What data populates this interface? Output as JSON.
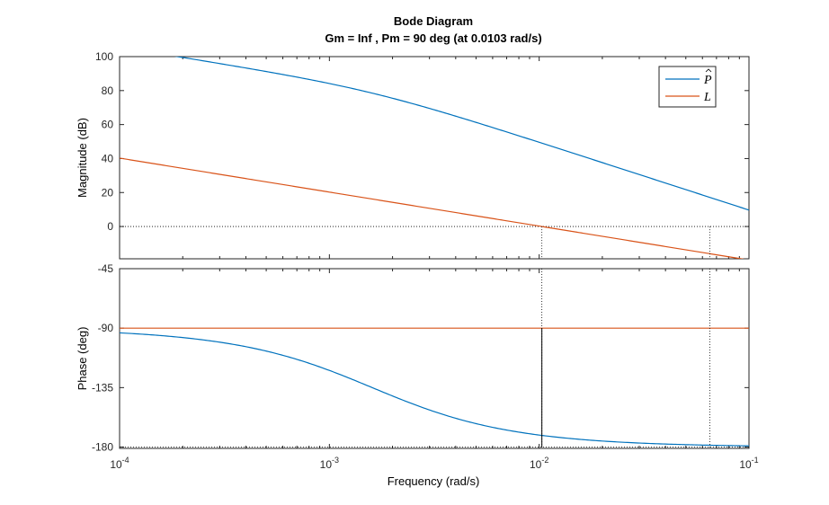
{
  "chart_data": {
    "type": "line",
    "title": "Bode Diagram",
    "subtitle": "Gm = Inf ,  Pm = 90 deg (at 0.0103 rad/s)",
    "xlabel": "Frequency  (rad/s)",
    "x_scale": "log",
    "xlim": [
      0.0001,
      0.1
    ],
    "x_ticks": [
      {
        "value": 0.0001,
        "base": "10",
        "exp": "-4"
      },
      {
        "value": 0.001,
        "base": "10",
        "exp": "-3"
      },
      {
        "value": 0.01,
        "base": "10",
        "exp": "-2"
      },
      {
        "value": 0.1,
        "base": "10",
        "exp": "-1"
      }
    ],
    "colors": {
      "P_hat": "#0072BD",
      "L": "#D95319",
      "marker": "#000000"
    },
    "legend": {
      "location": "top-right",
      "entries": [
        "P_hat",
        "L"
      ]
    },
    "panels": [
      {
        "id": "magnitude",
        "ylabel": "Magnitude (dB)",
        "ylim": [
          -19,
          100
        ],
        "yticks": [
          0,
          20,
          40,
          60,
          80,
          100
        ],
        "ytick_labels": [
          "0",
          "20",
          "40",
          "60",
          "80",
          "100"
        ],
        "reference_line": 0,
        "series": [
          {
            "key": "P_hat",
            "model": {
              "kind": "mag",
              "k_db": 25.6,
              "p": 0.0016
            }
          },
          {
            "key": "L",
            "model": {
              "kind": "mag_integrator",
              "k_db": -40,
              "c": 0.0103
            }
          }
        ],
        "crossover_markers": [
          0.0103,
          0.065
        ]
      },
      {
        "id": "phase",
        "ylabel": "Phase (deg)",
        "ylim": [
          -181,
          -45
        ],
        "yticks": [
          -45,
          -90,
          -135,
          -180
        ],
        "ytick_labels": [
          "-45",
          "-90",
          "-135",
          "-180"
        ],
        "series": [
          {
            "key": "P_hat",
            "model": {
              "kind": "phase",
              "p": 0.0016
            }
          },
          {
            "key": "L",
            "model": {
              "kind": "constant",
              "value": -90
            }
          }
        ],
        "margin_marker": {
          "x": 0.0103,
          "from": -180,
          "to": -90
        },
        "crossover_markers": [
          0.0103,
          0.065
        ]
      }
    ]
  }
}
